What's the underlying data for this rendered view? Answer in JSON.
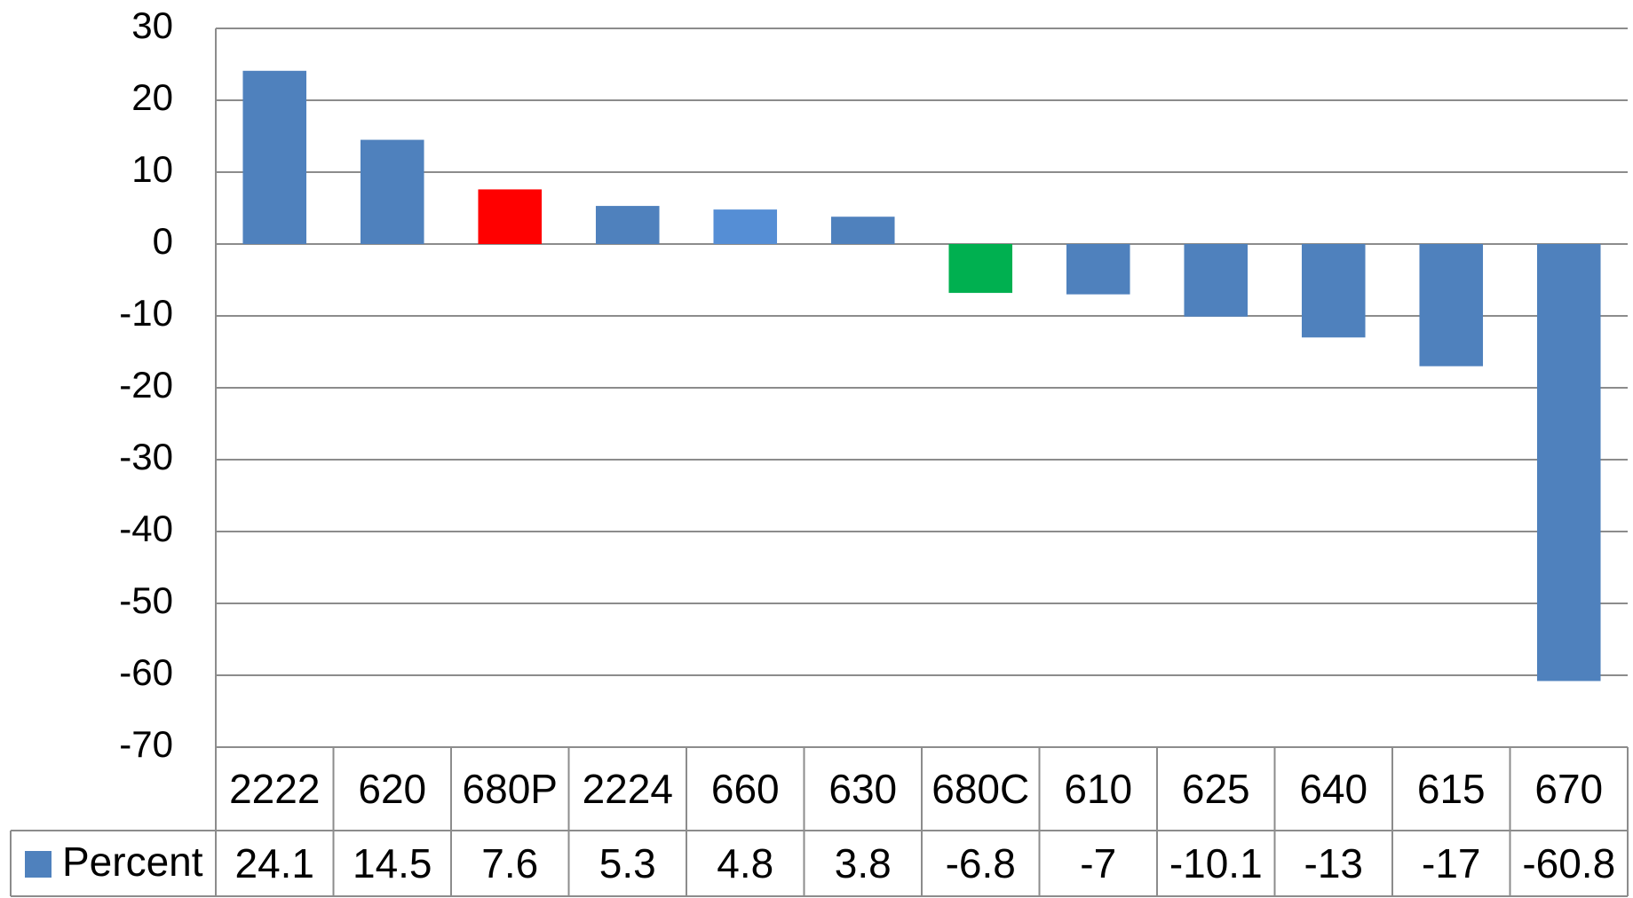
{
  "chart_data": {
    "type": "bar",
    "categories": [
      "2222",
      "620",
      "680P",
      "2224",
      "660",
      "630",
      "680C",
      "610",
      "625",
      "640",
      "615",
      "670"
    ],
    "series": [
      {
        "name": "Percent",
        "color": "#4f81bd",
        "values": [
          24.1,
          14.5,
          7.6,
          5.3,
          4.8,
          3.8,
          -6.8,
          -7,
          -10.1,
          -13,
          -17,
          -60.8
        ],
        "colors": [
          "#4f81bd",
          "#4f81bd",
          "#ff0000",
          "#4f81bd",
          "#558ed5",
          "#4f81bd",
          "#00b050",
          "#4f81bd",
          "#4f81bd",
          "#4f81bd",
          "#4f81bd",
          "#4f81bd"
        ]
      }
    ],
    "ylim": [
      -70,
      30
    ],
    "yticks": [
      -70,
      -60,
      -50,
      -40,
      -30,
      -20,
      -10,
      0,
      10,
      20,
      30
    ],
    "grid": true
  }
}
